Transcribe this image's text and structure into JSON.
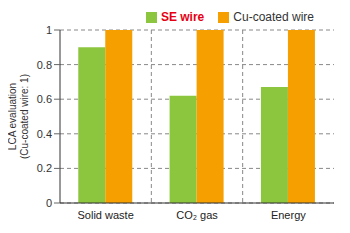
{
  "chart_data": {
    "type": "bar",
    "categories": [
      "Solid waste",
      "CO₂ gas",
      "Energy"
    ],
    "series": [
      {
        "name": "SE wire",
        "color": "#8cc63f",
        "values": [
          0.9,
          0.62,
          0.67
        ]
      },
      {
        "name": "Cu-coated wire",
        "color": "#f5a000",
        "values": [
          1,
          1,
          1
        ]
      }
    ],
    "y_label": "LCA evaluation\n(Cu-coated wire: 1)",
    "ylim": [
      0,
      1
    ],
    "yticks": [
      0,
      0.2,
      0.4,
      0.6,
      0.8,
      1
    ],
    "grid": true,
    "legend": "top"
  }
}
